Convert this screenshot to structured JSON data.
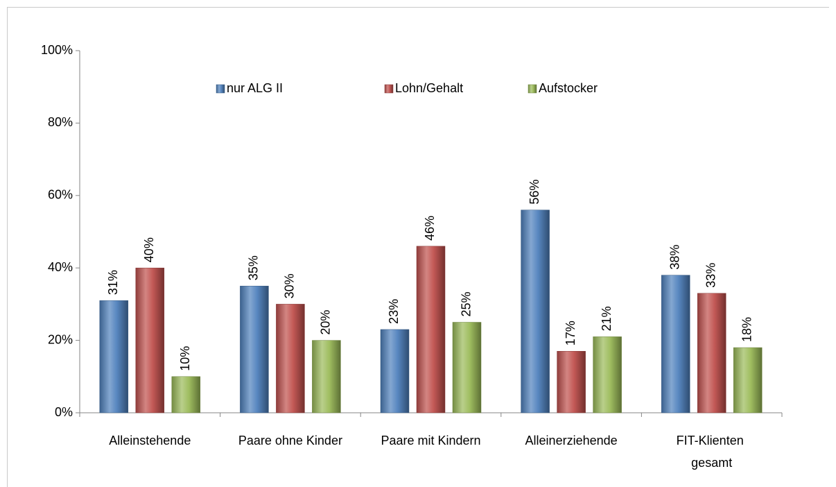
{
  "chart_data": {
    "type": "bar",
    "categories": [
      "Alleinstehende",
      "Paare ohne Kinder",
      "Paare mit Kindern",
      "Alleinerziehende",
      "FIT-Klienten\ngesamt"
    ],
    "series": [
      {
        "name": "nur ALG II",
        "color": "#4f81bd",
        "values": [
          31,
          35,
          23,
          56,
          38
        ],
        "value_labels": [
          "31%",
          "35%",
          "23%",
          "56%",
          "38%"
        ]
      },
      {
        "name": "Lohn/Gehalt",
        "color": "#c0504d",
        "values": [
          40,
          30,
          46,
          17,
          33
        ],
        "value_labels": [
          "40%",
          "30%",
          "46%",
          "17%",
          "33%"
        ]
      },
      {
        "name": "Aufstocker",
        "color": "#9bbb59",
        "values": [
          10,
          20,
          25,
          21,
          18
        ],
        "value_labels": [
          "10%",
          "20%",
          "25%",
          "21%",
          "18%"
        ]
      }
    ],
    "ylim": [
      0,
      100
    ],
    "yticks": [
      {
        "value": 0,
        "label": "0%"
      },
      {
        "value": 20,
        "label": "20%"
      },
      {
        "value": 40,
        "label": "40%"
      },
      {
        "value": 60,
        "label": "60%"
      },
      {
        "value": 80,
        "label": "80%"
      },
      {
        "value": 100,
        "label": "100%"
      }
    ],
    "grid": false,
    "legend": "top"
  }
}
